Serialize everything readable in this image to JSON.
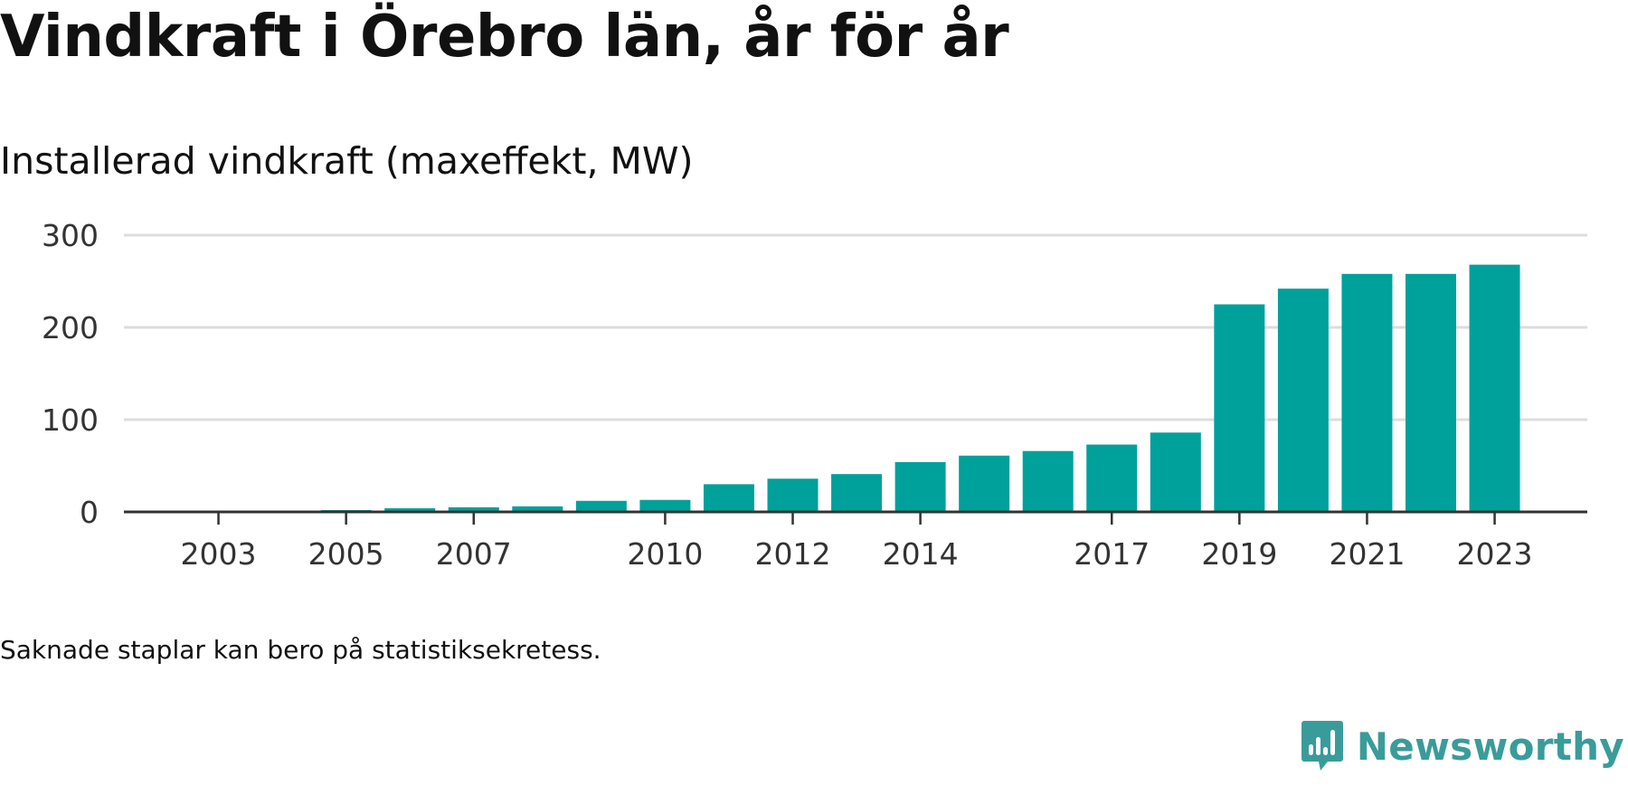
{
  "title": "Vindkraft i Örebro län, år för år",
  "subtitle": "Installerad vindkraft (maxeffekt, MW)",
  "note": "Saknade staplar kan bero på statistiksekretess.",
  "brand": {
    "name": "Newsworthy",
    "icon": "newsworthy-logo-icon",
    "color": "#3a9c9a"
  },
  "colors": {
    "bar": "#00a19a",
    "grid": "#dddddd",
    "axis": "#333333"
  },
  "chart_data": {
    "type": "bar",
    "categories": [
      "2002",
      "2003",
      "2004",
      "2005",
      "2006",
      "2007",
      "2008",
      "2009",
      "2010",
      "2011",
      "2012",
      "2013",
      "2014",
      "2015",
      "2016",
      "2017",
      "2018",
      "2019",
      "2020",
      "2021",
      "2022",
      "2023"
    ],
    "values": [
      0.5,
      0.5,
      0.5,
      2,
      4,
      5,
      6,
      12,
      13,
      30,
      36,
      41,
      54,
      61,
      66,
      73,
      86,
      225,
      242,
      258,
      258,
      268
    ],
    "tick_labels_x": [
      "2003",
      "2005",
      "2007",
      "2010",
      "2012",
      "2014",
      "2017",
      "2019",
      "2021",
      "2023"
    ],
    "yticks": [
      0,
      100,
      200,
      300
    ],
    "ylim": [
      0,
      300
    ],
    "xlabel": "",
    "ylabel": "",
    "grid": true,
    "legend": "none"
  }
}
